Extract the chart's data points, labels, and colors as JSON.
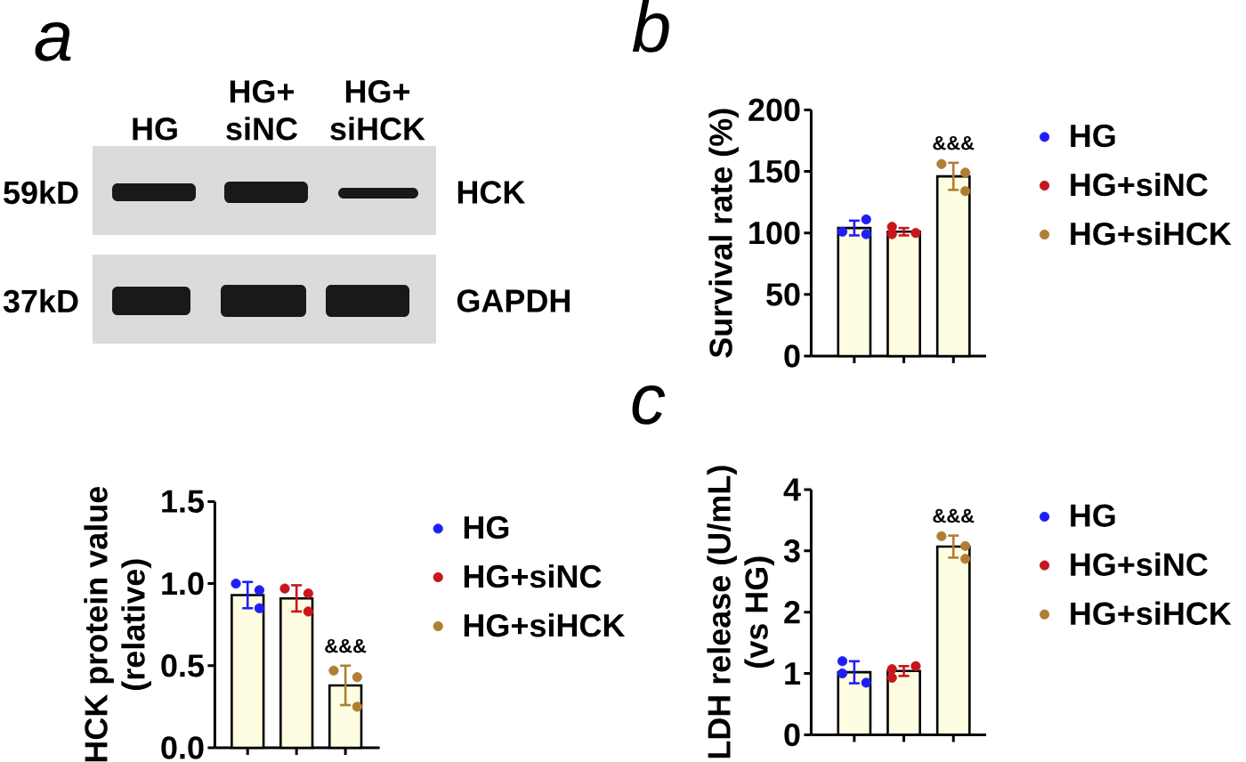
{
  "chart_data": [
    {
      "type": "other",
      "title": "a",
      "annotations": [
        "HG",
        "HG+ siNC",
        "HG+ siHCK",
        "59kD",
        "37kD",
        "HCK",
        "GAPDH"
      ]
    },
    {
      "type": "bar",
      "categories": [
        null,
        null,
        null
      ],
      "ylabel": "HCK protein value\n(relative)",
      "ylim": [
        0,
        1.5
      ],
      "yticks": [
        {
          "value": 0,
          "label": "0.0"
        },
        0.5,
        {
          "value": 1,
          "label": "1.0"
        },
        1.5
      ],
      "legend": "right",
      "marker": "circle",
      "series": [
        {
          "type": "bar",
          "color": "#fefde2",
          "values": [
            0.93,
            0.91,
            0.38
          ],
          "errors": [
            0.08,
            0.08,
            0.12
          ]
        },
        {
          "name": "HG",
          "type": "scatter",
          "color": "#1f1ff5",
          "values": [
            1.0,
            null,
            null
          ]
        },
        {
          "type": "scatter",
          "color": "#1f1ff5",
          "values": [
            0.85,
            null,
            null
          ]
        },
        {
          "type": "scatter",
          "color": "#1f1ff5",
          "values": [
            0.96,
            null,
            null
          ]
        },
        {
          "name": "HG+siNC",
          "type": "scatter",
          "color": "#c8161d",
          "values": [
            null,
            0.97,
            null
          ]
        },
        {
          "type": "scatter",
          "color": "#c8161d",
          "values": [
            null,
            0.83,
            null
          ]
        },
        {
          "type": "scatter",
          "color": "#c8161d",
          "values": [
            null,
            0.94,
            null
          ]
        },
        {
          "name": "HG+siHCK",
          "type": "scatter",
          "color": "#b07d35",
          "values": [
            null,
            null,
            0.47
          ]
        },
        {
          "type": "scatter",
          "color": "#b07d35",
          "values": [
            null,
            null,
            0.25
          ]
        },
        {
          "type": "scatter",
          "color": "#b07d35",
          "values": [
            null,
            null,
            0.43
          ]
        }
      ],
      "annotations": [
        "&&&"
      ]
    },
    {
      "type": "bar",
      "title": "b",
      "categories": [
        null,
        null,
        null
      ],
      "ylabel": "Survival rate (%)",
      "ylim": [
        0,
        200
      ],
      "yticks": [
        0,
        50,
        100,
        150,
        200
      ],
      "legend": "right",
      "marker": "circle",
      "series": [
        {
          "type": "bar",
          "color": "#fefde2",
          "values": [
            104,
            101,
            146
          ],
          "errors": [
            6,
            3,
            11
          ]
        },
        {
          "name": "HG",
          "type": "scatter",
          "color": "#1f1ff5",
          "values": [
            101,
            null,
            null
          ]
        },
        {
          "type": "scatter",
          "color": "#1f1ff5",
          "values": [
            111,
            null,
            null
          ]
        },
        {
          "type": "scatter",
          "color": "#1f1ff5",
          "values": [
            99,
            null,
            null
          ]
        },
        {
          "name": "HG+siNC",
          "type": "scatter",
          "color": "#c8161d",
          "values": [
            null,
            105,
            null
          ]
        },
        {
          "type": "scatter",
          "color": "#c8161d",
          "values": [
            null,
            100,
            null
          ]
        },
        {
          "type": "scatter",
          "color": "#c8161d",
          "values": [
            null,
            99,
            null
          ]
        },
        {
          "name": "HG+siHCK",
          "type": "scatter",
          "color": "#b07d35",
          "values": [
            null,
            null,
            156
          ]
        },
        {
          "type": "scatter",
          "color": "#b07d35",
          "values": [
            null,
            null,
            134
          ]
        },
        {
          "type": "scatter",
          "color": "#b07d35",
          "values": [
            null,
            null,
            149
          ]
        }
      ],
      "annotations": [
        "&&&"
      ]
    },
    {
      "type": "bar",
      "title": "c",
      "categories": [
        null,
        null,
        null
      ],
      "ylabel": "LDH release (U/mL)\n(vs HG)",
      "ylim": [
        0,
        4
      ],
      "yticks": [
        0,
        1,
        2,
        3,
        4
      ],
      "legend": "right",
      "marker": "circle",
      "series": [
        {
          "type": "bar",
          "color": "#fefde2",
          "values": [
            1.02,
            1.04,
            3.07
          ],
          "errors": [
            0.18,
            0.08,
            0.18
          ]
        },
        {
          "name": "HG",
          "type": "scatter",
          "color": "#1f1ff5",
          "values": [
            1.2,
            null,
            null
          ]
        },
        {
          "type": "scatter",
          "color": "#1f1ff5",
          "values": [
            0.85,
            null,
            null
          ]
        },
        {
          "type": "scatter",
          "color": "#1f1ff5",
          "values": [
            1.0,
            null,
            null
          ]
        },
        {
          "name": "HG+siNC",
          "type": "scatter",
          "color": "#c8161d",
          "values": [
            null,
            0.93,
            null
          ]
        },
        {
          "type": "scatter",
          "color": "#c8161d",
          "values": [
            null,
            1.12,
            null
          ]
        },
        {
          "type": "scatter",
          "color": "#c8161d",
          "values": [
            null,
            1.07,
            null
          ]
        },
        {
          "name": "HG+siHCK",
          "type": "scatter",
          "color": "#b07d35",
          "values": [
            null,
            null,
            3.24
          ]
        },
        {
          "type": "scatter",
          "color": "#b07d35",
          "values": [
            null,
            null,
            2.87
          ]
        },
        {
          "type": "scatter",
          "color": "#b07d35",
          "values": [
            null,
            null,
            3.08
          ]
        }
      ],
      "annotations": [
        "&&&"
      ]
    }
  ]
}
